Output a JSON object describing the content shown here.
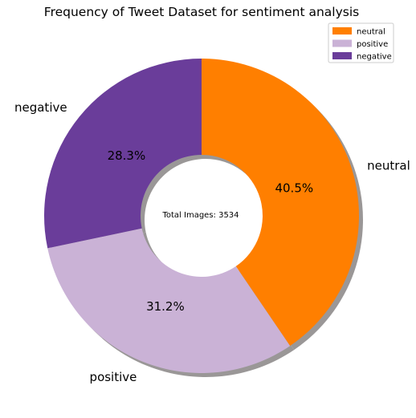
{
  "chart_data": {
    "type": "pie",
    "title": "Frequency of Tweet Dataset for sentiment analysis",
    "center_text": "Total Images: 3534",
    "slices": [
      {
        "label": "neutral",
        "percent": 40.5,
        "pct_label": "40.5%",
        "color": "#ff7f00"
      },
      {
        "label": "positive",
        "percent": 31.2,
        "pct_label": "31.2%",
        "color": "#cab2d6"
      },
      {
        "label": "negative",
        "percent": 28.3,
        "pct_label": "28.3%",
        "color": "#6a3d9a"
      }
    ],
    "start_angle_deg": 90,
    "direction": "clockwise",
    "donut": true,
    "shadow": true,
    "legend": {
      "placement": "top-right",
      "entries": [
        "neutral",
        "positive",
        "negative"
      ]
    }
  }
}
